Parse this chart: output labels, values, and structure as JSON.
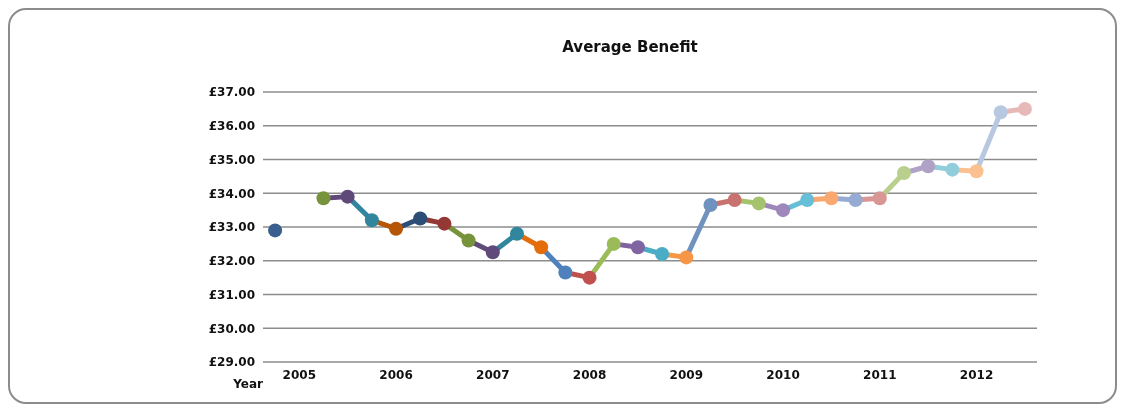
{
  "chart_data": {
    "type": "line",
    "title": "Average Benefit",
    "xlabel": "Year",
    "categories": [
      null,
      "2005",
      null,
      null,
      null,
      "2006",
      null,
      null,
      null,
      "2007",
      null,
      null,
      null,
      "2008",
      null,
      null,
      null,
      "2009",
      null,
      null,
      null,
      "2010",
      null,
      null,
      null,
      "2011",
      null,
      null,
      null,
      "2012",
      null,
      null
    ],
    "values": [
      32.9,
      null,
      33.85,
      33.9,
      33.2,
      32.95,
      33.25,
      33.1,
      32.6,
      32.25,
      32.8,
      32.4,
      31.65,
      31.5,
      32.5,
      32.4,
      32.2,
      32.1,
      33.65,
      33.8,
      33.7,
      33.5,
      33.8,
      33.85,
      33.8,
      33.85,
      34.6,
      34.8,
      34.7,
      34.65,
      36.4,
      36.5
    ],
    "colors": [
      "#3a5f8f",
      "#5f497a",
      "#77933c",
      "#5f497a",
      "#31859c",
      "#b65708",
      "#2c4d75",
      "#953735",
      "#77933c",
      "#604a7b",
      "#31859c",
      "#e46c0a",
      "#4f81bd",
      "#c0504d",
      "#9bbb59",
      "#8064a2",
      "#4bacc6",
      "#f79646",
      "#7092be",
      "#c87370",
      "#a5c26c",
      "#9e87bb",
      "#66bfd6",
      "#f9a870",
      "#95abd4",
      "#d89795",
      "#b8cf8e",
      "#b0a2c6",
      "#92cddc",
      "#fac090",
      "#b9c8e1",
      "#e6b9b8"
    ],
    "ylim": [
      29,
      37
    ],
    "yticks": [
      {
        "value": 29,
        "label": "£29.00"
      },
      {
        "value": 30,
        "label": "£30.00"
      },
      {
        "value": 31,
        "label": "£31.00"
      },
      {
        "value": 32,
        "label": "£32.00"
      },
      {
        "value": 33,
        "label": "£33.00"
      },
      {
        "value": 34,
        "label": "£34.00"
      },
      {
        "value": 35,
        "label": "£35.00"
      },
      {
        "value": 36,
        "label": "£36.00"
      },
      {
        "value": 37,
        "label": "£37.00"
      }
    ],
    "grid": "y",
    "marker": "circle",
    "line_style": "solid"
  }
}
